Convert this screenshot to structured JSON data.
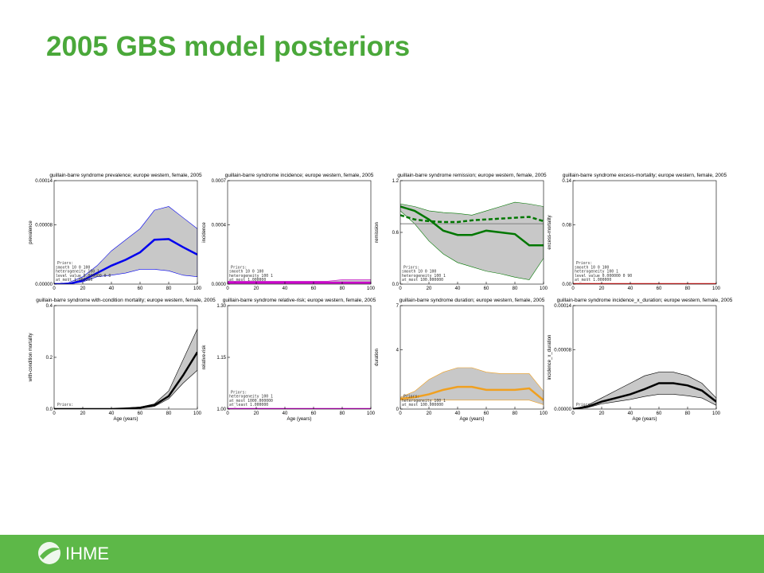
{
  "slide": {
    "title": "2005 GBS model posteriors",
    "footer_logo": "IHME"
  },
  "chart_data": [
    {
      "type": "line",
      "title": "guillain-barre syndrome prevalence; europe western, female, 2005",
      "ylabel": "prevalence",
      "x": [
        0,
        10,
        20,
        30,
        40,
        50,
        60,
        70,
        80,
        90,
        100
      ],
      "xlim": [
        0,
        100
      ],
      "xticks": [
        0,
        20,
        40,
        60,
        80,
        100
      ],
      "ylim": [
        0,
        0.00014
      ],
      "yticks": [
        {
          "value": 0,
          "label": "0.00000"
        },
        {
          "value": 8e-05,
          "label": "0.00008"
        },
        {
          "value": 0.00014,
          "label": "0.00014"
        }
      ],
      "series": [
        {
          "color": "#0000ee",
          "values": [
            0,
            0,
            5e-06,
            1.5e-05,
            2.5e-05,
            3.3e-05,
            4.3e-05,
            6e-05,
            6.1e-05,
            5e-05,
            4e-05
          ],
          "upper": [
            0,
            2e-06,
            1e-05,
            2.5e-05,
            4.5e-05,
            6e-05,
            7.5e-05,
            0.0001,
            0.000105,
            9e-05,
            7.5e-05
          ],
          "lower": [
            0,
            0,
            3e-06,
            1e-05,
            1.2e-05,
            1.5e-05,
            2e-05,
            2e-05,
            1.8e-05,
            1.2e-05,
            1e-05
          ]
        }
      ],
      "annotations": [
        "Priors:",
        "smooth 10 0 100",
        "heterogeneity 100 1",
        "level_value 0.000000 0 0",
        "at_most 1.000000"
      ]
    },
    {
      "type": "line",
      "title": "guillain-barre syndrome incidence; europe western, female, 2005",
      "ylabel": "incidence",
      "x": [
        0,
        10,
        20,
        30,
        40,
        50,
        60,
        70,
        80,
        90,
        100
      ],
      "xlim": [
        0,
        100
      ],
      "xticks": [
        0,
        20,
        40,
        60,
        80,
        100
      ],
      "ylim": [
        0,
        0.0007
      ],
      "yticks": [
        {
          "value": 0,
          "label": "0.0000"
        },
        {
          "value": 0.0004,
          "label": "0.0004"
        },
        {
          "value": 0.0007,
          "label": "0.0007"
        }
      ],
      "series": [
        {
          "color": "#cc00cc",
          "values": [
            1e-05,
            1e-05,
            1e-05,
            1e-05,
            1e-05,
            1e-05,
            1e-05,
            1e-05,
            1e-05,
            1e-05,
            1e-05
          ],
          "upper": [
            2e-05,
            2e-05,
            2e-05,
            2e-05,
            2e-05,
            2e-05,
            2e-05,
            2e-05,
            3e-05,
            3e-05,
            3e-05
          ],
          "lower": [
            0,
            0,
            0,
            0,
            0,
            0,
            0,
            0,
            0,
            0,
            0
          ]
        }
      ],
      "annotations": [
        "Priors:",
        "smooth 10 0 100",
        "heterogeneity 100 1",
        "at_most 1.000000"
      ]
    },
    {
      "type": "line",
      "title": "guillain-barre syndrome remission; europe western, female, 2005",
      "ylabel": "remission",
      "x": [
        0,
        10,
        20,
        30,
        40,
        50,
        60,
        70,
        80,
        90,
        100
      ],
      "xlim": [
        0,
        100
      ],
      "xticks": [
        0,
        20,
        40,
        60,
        80,
        100
      ],
      "ylim": [
        0,
        1.2
      ],
      "yticks": [
        {
          "value": 0,
          "label": "0.0"
        },
        0.6,
        1.2
      ],
      "reference_line": 0.7,
      "reference_color": "#888888",
      "series": [
        {
          "color": "#007700",
          "values": [
            0.9,
            0.85,
            0.75,
            0.62,
            0.57,
            0.57,
            0.62,
            0.6,
            0.58,
            0.45,
            0.45
          ],
          "upper": [
            0.93,
            0.9,
            0.85,
            0.83,
            0.82,
            0.8,
            0.85,
            0.9,
            0.95,
            0.93,
            0.9
          ],
          "lower": [
            0.85,
            0.7,
            0.5,
            0.35,
            0.25,
            0.2,
            0.15,
            0.12,
            0.08,
            0.05,
            0.3
          ]
        },
        {
          "color": "#007700",
          "style": "dashed",
          "values": [
            0.8,
            0.75,
            0.73,
            0.72,
            0.72,
            0.74,
            0.75,
            0.76,
            0.77,
            0.78,
            0.73
          ]
        }
      ],
      "annotations": [
        "Priors:",
        "smooth 10 0 100",
        "heterogeneity 100 1",
        "at_most 100.000000"
      ]
    },
    {
      "type": "line",
      "title": "guillain-barre syndrome excess-mortality; europe western, female, 2005",
      "ylabel": "excess-mortality",
      "x": [
        0,
        10,
        20,
        30,
        40,
        50,
        60,
        70,
        80,
        90,
        100
      ],
      "xlim": [
        0,
        100
      ],
      "xticks": [
        0,
        20,
        40,
        60,
        80,
        100
      ],
      "ylim": [
        0,
        0.14
      ],
      "yticks": [
        {
          "value": 0,
          "label": "0.00"
        },
        0.08,
        0.14
      ],
      "series": [
        {
          "color": "#ee2222",
          "values": [
            0,
            0,
            0,
            0,
            0,
            0,
            0,
            0,
            0,
            0,
            0
          ]
        }
      ],
      "annotations": [
        "Priors:",
        "smooth 10 0 100",
        "heterogeneity 100 1",
        "level_value 0.000000 0 90",
        "at_most 1.000000"
      ]
    },
    {
      "type": "line",
      "title": "guillain-barre syndrome with-condition mortality; europe western, female, 2005",
      "ylabel": "with-condition mortality",
      "xlabel": "Age (years)",
      "x": [
        0,
        10,
        20,
        30,
        40,
        50,
        60,
        70,
        80,
        90,
        100
      ],
      "xlim": [
        0,
        100
      ],
      "xticks": [
        0,
        20,
        40,
        60,
        80,
        100
      ],
      "ylim": [
        0,
        0.4
      ],
      "yticks": [
        {
          "value": 0,
          "label": "0.0"
        },
        0.2,
        0.4
      ],
      "series": [
        {
          "color": "#000000",
          "values": [
            0,
            0,
            0,
            0,
            0,
            0.002,
            0.005,
            0.015,
            0.05,
            0.13,
            0.22
          ],
          "upper": [
            0,
            0,
            0,
            0,
            0.001,
            0.004,
            0.008,
            0.02,
            0.07,
            0.19,
            0.31
          ],
          "lower": [
            0,
            0,
            0,
            0,
            0,
            0.001,
            0.003,
            0.01,
            0.04,
            0.1,
            0.15
          ]
        }
      ],
      "annotations": [
        "Priors:"
      ]
    },
    {
      "type": "line",
      "title": "guillain-barre syndrome relative-risk; europe western, female, 2005",
      "ylabel": "relative-risk",
      "xlabel": "Age (years)",
      "x": [
        0,
        10,
        20,
        30,
        40,
        50,
        60,
        70,
        80,
        90,
        100
      ],
      "xlim": [
        0,
        100
      ],
      "xticks": [
        0,
        20,
        40,
        60,
        80,
        100
      ],
      "ylim": [
        1,
        1.3
      ],
      "yticks": [
        {
          "value": 1,
          "label": "1.00"
        },
        1.15,
        {
          "value": 1.3,
          "label": "1.30"
        }
      ],
      "series": [
        {
          "color": "#cc00cc",
          "values": [
            1,
            1,
            1,
            1,
            1,
            1,
            1,
            1,
            1,
            1,
            1
          ]
        }
      ],
      "annotations": [
        "Priors:",
        "heterogeneity 100 1",
        "at_most 1000.000000",
        "at_least 1.000000"
      ]
    },
    {
      "type": "line",
      "title": "guillain-barre syndrome duration; europe western, female, 2005",
      "ylabel": "duration",
      "xlabel": "Age (years)",
      "x": [
        0,
        10,
        20,
        30,
        40,
        50,
        60,
        70,
        80,
        90,
        100
      ],
      "xlim": [
        0,
        100
      ],
      "xticks": [
        0,
        20,
        40,
        60,
        80,
        100
      ],
      "ylim": [
        0,
        7
      ],
      "yticks": [
        0,
        4,
        7
      ],
      "series": [
        {
          "color": "#f0a020",
          "values": [
            0.7,
            0.8,
            1.0,
            1.3,
            1.5,
            1.5,
            1.3,
            1.3,
            1.3,
            1.4,
            0.6
          ],
          "upper": [
            0.8,
            1.2,
            2.0,
            2.5,
            2.8,
            2.8,
            2.5,
            2.4,
            2.4,
            2.4,
            1.2
          ],
          "lower": [
            0.6,
            0.6,
            0.6,
            0.6,
            0.6,
            0.6,
            0.6,
            0.6,
            0.6,
            0.6,
            0.3
          ]
        }
      ],
      "annotations": [
        "Priors:",
        "heterogeneity 100 1",
        "at_most 100.000000"
      ]
    },
    {
      "type": "line",
      "title": "guillain-barre syndrome incidence_x_duration; europe western, female, 2005",
      "ylabel": "incidence_x_duration",
      "xlabel": "Age (years)",
      "x": [
        0,
        10,
        20,
        30,
        40,
        50,
        60,
        70,
        80,
        90,
        100
      ],
      "xlim": [
        0,
        100
      ],
      "xticks": [
        0,
        20,
        40,
        60,
        80,
        100
      ],
      "ylim": [
        0,
        0.00014
      ],
      "yticks": [
        {
          "value": 0,
          "label": "0.00000"
        },
        {
          "value": 8e-05,
          "label": "0.00008"
        },
        {
          "value": 0.00014,
          "label": "0.00014"
        }
      ],
      "series": [
        {
          "color": "#000000",
          "values": [
            0,
            3e-06,
            1e-05,
            1.5e-05,
            2e-05,
            2.7e-05,
            3.5e-05,
            3.5e-05,
            3.2e-05,
            2.5e-05,
            1e-05
          ],
          "upper": [
            0,
            5e-06,
            1.5e-05,
            2.5e-05,
            3.5e-05,
            4.5e-05,
            5e-05,
            5e-05,
            4.5e-05,
            3.5e-05,
            1.5e-05
          ],
          "lower": [
            0,
            2e-06,
            7e-06,
            1e-05,
            1.3e-05,
            1.7e-05,
            2e-05,
            2e-05,
            1.8e-05,
            1.5e-05,
            5e-06
          ]
        }
      ],
      "annotations": [
        "Priors:"
      ]
    }
  ]
}
